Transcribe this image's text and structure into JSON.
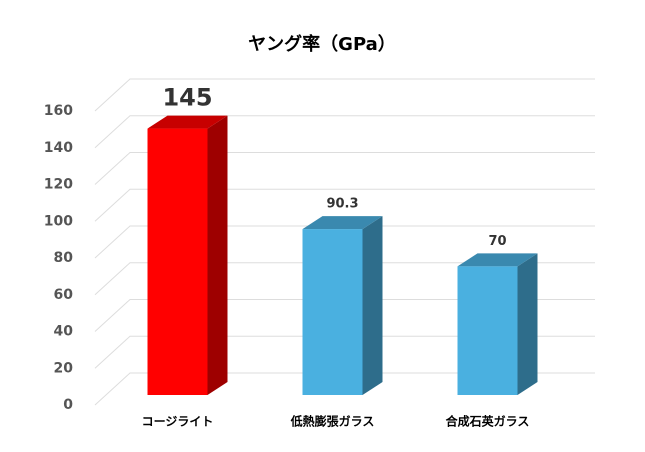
{
  "chart_data": {
    "type": "bar3d",
    "title": "ヤング率（GPa）",
    "categories": [
      "コージライト",
      "低熱膨張ガラス",
      "合成石英ガラス"
    ],
    "values": [
      145,
      90.3,
      70
    ],
    "colors": [
      "#ff0000",
      "#4ab0e0",
      "#4ab0e0"
    ],
    "ylim": [
      0,
      160
    ],
    "yticks": [
      0,
      20,
      40,
      60,
      80,
      100,
      120,
      140,
      160
    ],
    "grid": true
  }
}
